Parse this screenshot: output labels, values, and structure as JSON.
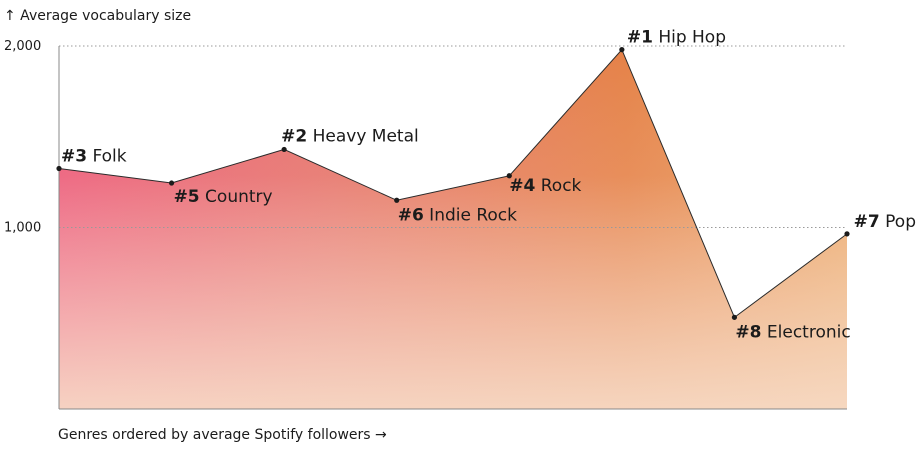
{
  "chart_data": {
    "type": "area",
    "title": "",
    "ylabel": "↑ Average vocabulary size",
    "xlabel": "Genres ordered by average Spotify followers  →",
    "ylim": [
      0,
      2000
    ],
    "yticks": [
      {
        "value": 2000,
        "label": "2,000"
      },
      {
        "value": 1000,
        "label": "1,000"
      }
    ],
    "grid": "horizontal dotted at y ticks",
    "gradient": {
      "top_left": "#ec5a78",
      "right": "#e8893f",
      "bottom": "#f7dcc8"
    },
    "points": [
      {
        "rank": "#3",
        "genre": "Folk",
        "value": 1325
      },
      {
        "rank": "#5",
        "genre": "Country",
        "value": 1245
      },
      {
        "rank": "#2",
        "genre": "Heavy Metal",
        "value": 1430
      },
      {
        "rank": "#6",
        "genre": "Indie Rock",
        "value": 1150
      },
      {
        "rank": "#4",
        "genre": "Rock",
        "value": 1285
      },
      {
        "rank": "#1",
        "genre": "Hip Hop",
        "value": 1980
      },
      {
        "rank": "#8",
        "genre": "Electronic",
        "value": 505
      },
      {
        "rank": "#7",
        "genre": "Pop",
        "value": 965
      }
    ]
  }
}
